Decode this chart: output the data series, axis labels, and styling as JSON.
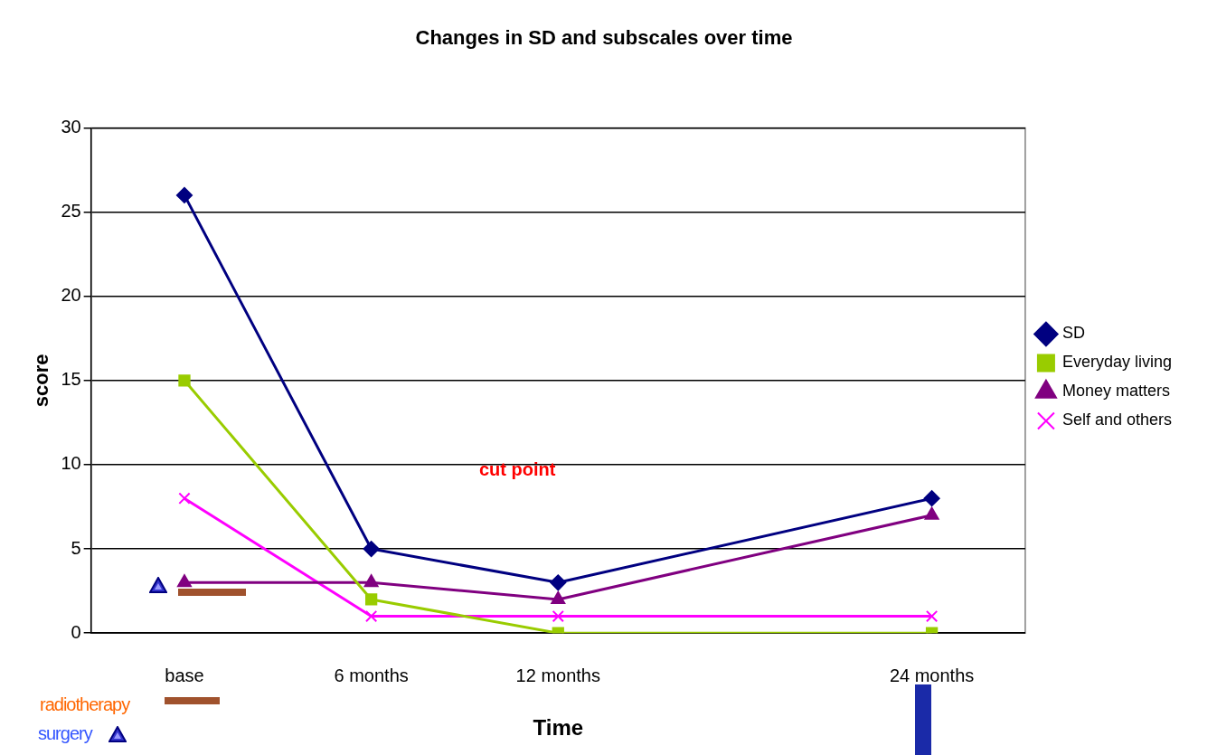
{
  "chart_data": {
    "type": "line",
    "title": "Changes in SD and subscales over time",
    "xlabel": "Time",
    "ylabel": "score",
    "categories": [
      "base",
      "6 months",
      "12 months",
      null,
      "24 months"
    ],
    "series": [
      {
        "name": "SD",
        "color": "#000080",
        "marker": "diamond",
        "values": [
          26,
          5,
          3,
          null,
          8
        ]
      },
      {
        "name": "Everyday living",
        "color": "#99cc00",
        "marker": "square",
        "values": [
          15,
          2,
          0,
          null,
          0
        ]
      },
      {
        "name": "Money matters",
        "color": "#800080",
        "marker": "triangle",
        "values": [
          3,
          3,
          2,
          null,
          7
        ]
      },
      {
        "name": "Self and others",
        "color": "#ff00ff",
        "marker": "cross",
        "values": [
          8,
          1,
          1,
          null,
          1
        ]
      }
    ],
    "ylim": [
      0,
      30
    ],
    "yticks": [
      0,
      5,
      10,
      15,
      20,
      25,
      30
    ],
    "grid": "y",
    "legend": "right",
    "annotations": [
      "cut point",
      "radiotherapy",
      "surgery"
    ]
  }
}
